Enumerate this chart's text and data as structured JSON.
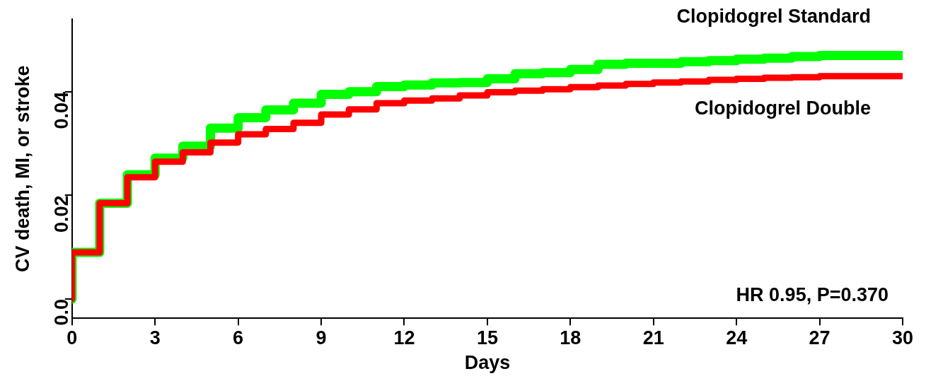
{
  "chart_data": {
    "type": "step",
    "xlabel": "Days",
    "ylabel": "CV death, MI, or stroke",
    "x": [
      0,
      1,
      2,
      3,
      4,
      5,
      6,
      7,
      8,
      9,
      10,
      11,
      12,
      13,
      14,
      15,
      16,
      17,
      18,
      19,
      20,
      21,
      22,
      23,
      24,
      25,
      26,
      27,
      28,
      29,
      30
    ],
    "series": [
      {
        "name": "Clopidogrel Standard",
        "color": "#00ff00",
        "values": [
          0,
          0.009,
          0.0185,
          0.024,
          0.0272,
          0.0295,
          0.033,
          0.035,
          0.0365,
          0.0378,
          0.0395,
          0.04,
          0.041,
          0.0413,
          0.0417,
          0.0418,
          0.0425,
          0.0435,
          0.0437,
          0.0443,
          0.0453,
          0.0455,
          0.0455,
          0.0458,
          0.046,
          0.0463,
          0.0465,
          0.0468,
          0.047,
          0.047,
          0.047
        ]
      },
      {
        "name": "Clopidogrel Double",
        "color": "#ff0000",
        "values": [
          0,
          0.009,
          0.0185,
          0.0235,
          0.0265,
          0.0283,
          0.0302,
          0.0318,
          0.0328,
          0.034,
          0.0356,
          0.0366,
          0.0378,
          0.0383,
          0.0387,
          0.0393,
          0.0399,
          0.0402,
          0.0405,
          0.0409,
          0.0412,
          0.0415,
          0.0418,
          0.042,
          0.0423,
          0.0425,
          0.0427,
          0.0428,
          0.043,
          0.043,
          0.043
        ]
      }
    ],
    "xlim": [
      0,
      30
    ],
    "xticks": [
      0,
      3,
      6,
      9,
      12,
      15,
      18,
      21,
      24,
      27,
      30
    ],
    "ylim": [
      -0.0037,
      0.054
    ],
    "yticks": [
      {
        "value": 0,
        "label": "0.0"
      },
      0.02,
      0.04
    ],
    "grid": false,
    "legend": false,
    "marker": "none",
    "line_style": "solid",
    "annotations": [
      "HR 0.95, P=0.370"
    ]
  }
}
